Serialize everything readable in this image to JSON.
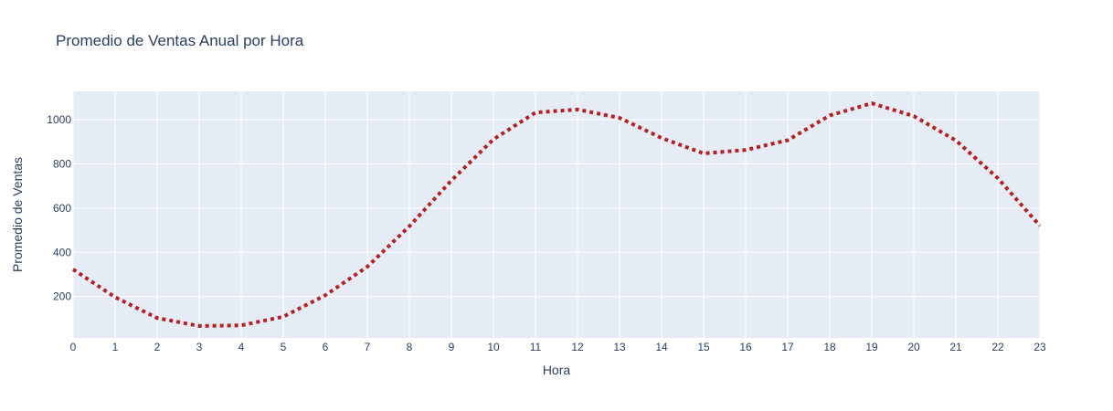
{
  "chart_data": {
    "type": "line",
    "title": "Promedio de Ventas Anual por Hora",
    "xlabel": "Hora",
    "ylabel": "Promedio de Ventas",
    "x": [
      0,
      1,
      2,
      3,
      4,
      5,
      6,
      7,
      8,
      9,
      10,
      11,
      12,
      13,
      14,
      15,
      16,
      17,
      18,
      19,
      20,
      21,
      22,
      23
    ],
    "series": [
      {
        "values": [
          323,
          197,
          103,
          67,
          70,
          109,
          206,
          335,
          518,
          725,
          911,
          1032,
          1046,
          1008,
          917,
          847,
          863,
          907,
          1019,
          1074,
          1016,
          906,
          735,
          520
        ],
        "line_style": "dot",
        "color": "#b22222"
      }
    ],
    "xlim": [
      0,
      23
    ],
    "ylim": [
      13,
      1128
    ],
    "xticks": [
      "0",
      "1",
      "2",
      "3",
      "4",
      "5",
      "6",
      "7",
      "8",
      "9",
      "10",
      "11",
      "12",
      "13",
      "14",
      "15",
      "16",
      "17",
      "18",
      "19",
      "20",
      "21",
      "22",
      "23"
    ],
    "yticks": [
      200,
      400,
      600,
      800,
      1000
    ],
    "grid": true,
    "legend": "none",
    "colors": {
      "plot_background": "#e5ecf6",
      "grid": "#ffffff",
      "text": "#2a3f5f"
    }
  }
}
